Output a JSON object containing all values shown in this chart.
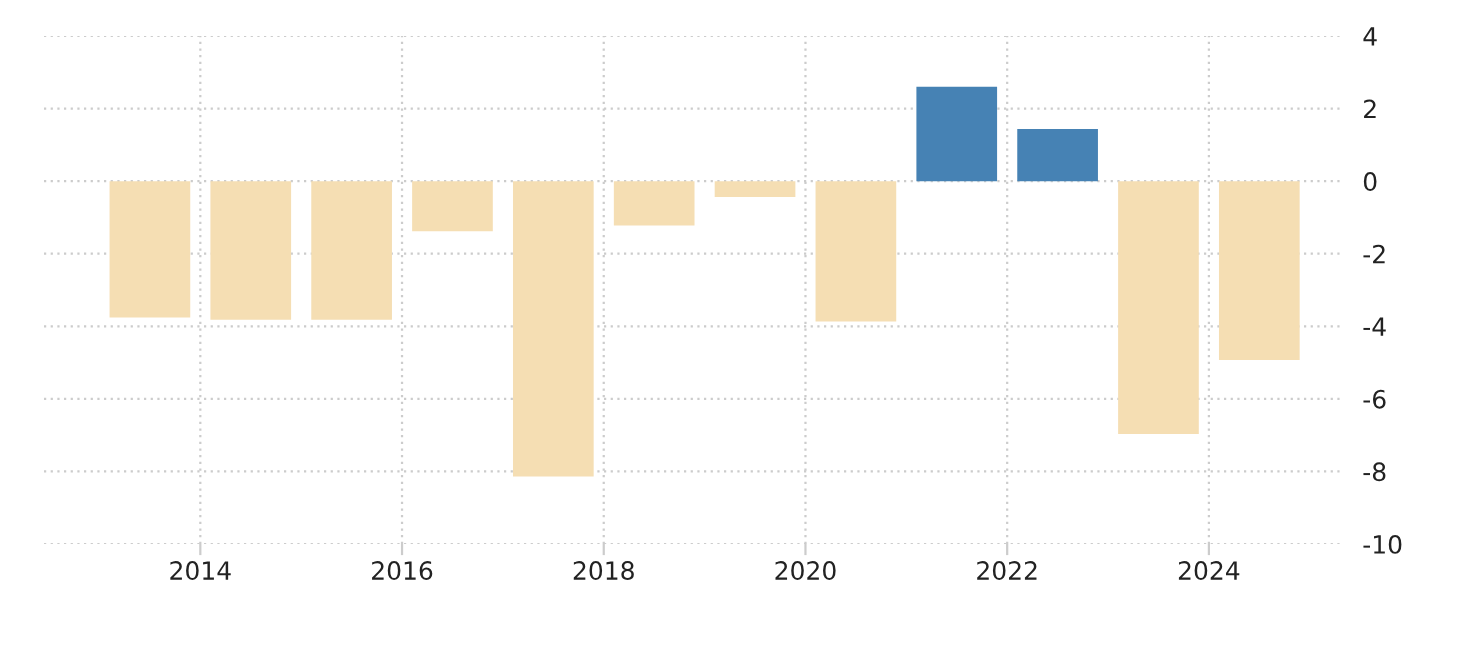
{
  "chart_data": {
    "type": "bar",
    "x": [
      2013.5,
      2014.5,
      2015.5,
      2016.5,
      2017.5,
      2018.5,
      2019.5,
      2020.5,
      2021.5,
      2022.5,
      2023.5,
      2024.5
    ],
    "values": [
      -3.76,
      -3.82,
      -3.82,
      -1.38,
      -8.14,
      -1.22,
      -0.44,
      -3.87,
      2.6,
      1.44,
      -6.97,
      -4.93
    ],
    "colors": [
      "#f5deb3",
      "#f5deb3",
      "#f5deb3",
      "#f5deb3",
      "#f5deb3",
      "#f5deb3",
      "#f5deb3",
      "#f5deb3",
      "#4682b4",
      "#4682b4",
      "#f5deb3",
      "#f5deb3"
    ],
    "xlim": [
      2012.45,
      2025.3
    ],
    "xticks": [
      2014,
      2016,
      2018,
      2020,
      2022,
      2024
    ],
    "ylim": [
      -10,
      4
    ],
    "yticks": [
      -10,
      -8,
      -6,
      -4,
      -2,
      0,
      2,
      4
    ],
    "grid": true,
    "legend": false
  }
}
